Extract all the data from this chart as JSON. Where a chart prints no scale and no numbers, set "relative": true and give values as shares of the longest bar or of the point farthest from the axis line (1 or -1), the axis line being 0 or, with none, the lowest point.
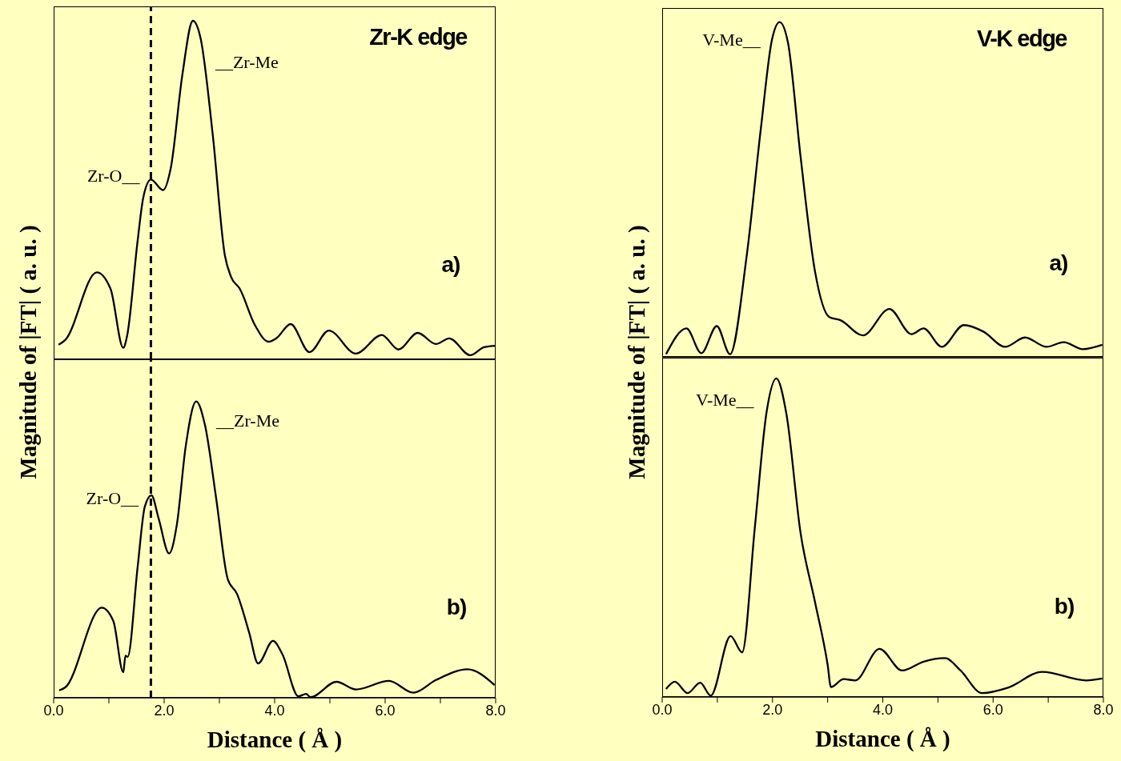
{
  "chart_data": [
    {
      "type": "line",
      "title": "Zr-K edge",
      "ylabel": "Magnitude of |FT| ( a. u. )",
      "relative": true,
      "xlim": [
        0,
        8
      ],
      "tick_labels": false,
      "x": [
        0.09,
        0.21,
        0.78,
        1.03,
        1.26,
        1.33,
        1.52,
        1.62,
        1.76,
        1.98,
        2.12,
        2.33,
        2.52,
        2.66,
        2.88,
        3.1,
        3.21,
        3.37,
        3.64,
        3.89,
        4.03,
        4.29,
        4.63,
        4.98,
        5.47,
        5.94,
        6.24,
        6.59,
        6.92,
        7.16,
        7.54,
        7.79,
        8.0
      ],
      "series": [
        {
          "color": "#000000",
          "values": [
            0.043,
            0.057,
            0.257,
            0.208,
            0.034,
            0.07,
            0.35,
            0.476,
            0.531,
            0.5,
            0.565,
            0.841,
            1.0,
            0.948,
            0.663,
            0.306,
            0.244,
            0.208,
            0.102,
            0.052,
            0.062,
            0.104,
            0.021,
            0.085,
            0.017,
            0.072,
            0.029,
            0.078,
            0.045,
            0.062,
            0.012,
            0.036,
            0.04
          ]
        }
      ],
      "ref_lines": [
        {
          "axis": "x",
          "value": 1.76,
          "line_style": "dashed",
          "color": "#000000"
        }
      ],
      "annotations": [
        {
          "text": "Zr-O__",
          "x": 1.76,
          "y": 0.531
        },
        {
          "text": "__Zr-Me",
          "x": 2.52,
          "y": 1.0
        },
        "a)"
      ]
    },
    {
      "type": "line",
      "title": "V-K edge",
      "ylabel": "Magnitude of |FT| ( a. u. )",
      "relative": true,
      "xlim": [
        0,
        8
      ],
      "tick_labels": false,
      "x": [
        0.07,
        0.44,
        0.71,
        0.99,
        1.23,
        1.53,
        1.79,
        1.99,
        2.13,
        2.28,
        2.51,
        2.77,
        3.03,
        3.24,
        3.64,
        4.12,
        4.52,
        4.74,
        5.07,
        5.47,
        5.83,
        6.22,
        6.58,
        6.97,
        7.28,
        7.63,
        7.98
      ],
      "series": [
        {
          "color": "#000000",
          "values": [
            0.008,
            0.085,
            0.011,
            0.092,
            0.008,
            0.299,
            0.683,
            0.947,
            1.0,
            0.939,
            0.597,
            0.256,
            0.119,
            0.109,
            0.064,
            0.143,
            0.068,
            0.085,
            0.03,
            0.095,
            0.075,
            0.03,
            0.058,
            0.03,
            0.044,
            0.023,
            0.036
          ]
        }
      ],
      "annotations": [
        {
          "text": "V-Me__",
          "x": 2.13,
          "y": 1.0
        },
        "a)"
      ]
    },
    {
      "type": "line",
      "xlabel": "Distance ( Å )",
      "relative": true,
      "xlim": [
        0,
        8
      ],
      "xticks": [
        {
          "value": 0,
          "label": "0.0"
        },
        {
          "value": 1,
          "label": null
        },
        {
          "value": 2,
          "label": "2.0"
        },
        {
          "value": 3,
          "label": null
        },
        {
          "value": 4,
          "label": "4.0"
        },
        {
          "value": 5,
          "label": null
        },
        {
          "value": 6,
          "label": "6.0"
        },
        {
          "value": 7,
          "label": null
        },
        {
          "value": 8,
          "label": "8.0"
        }
      ],
      "tick_labels": "x",
      "x": [
        0.1,
        0.21,
        0.87,
        1.08,
        1.26,
        1.3,
        1.34,
        1.52,
        1.65,
        1.77,
        1.9,
        2.09,
        2.23,
        2.39,
        2.58,
        2.74,
        2.94,
        3.15,
        3.32,
        3.54,
        3.7,
        3.97,
        4.14,
        4.43,
        4.57,
        4.65,
        5.12,
        5.47,
        6.07,
        6.51,
        6.92,
        7.49,
        7.98
      ],
      "series": [
        {
          "color": "#000000",
          "values": [
            0.025,
            0.035,
            0.304,
            0.259,
            0.086,
            0.142,
            0.138,
            0.441,
            0.645,
            0.683,
            0.605,
            0.487,
            0.584,
            0.848,
            1.0,
            0.919,
            0.675,
            0.401,
            0.35,
            0.219,
            0.116,
            0.192,
            0.147,
            0.005,
            0.013,
            0.002,
            0.054,
            0.028,
            0.057,
            0.017,
            0.06,
            0.096,
            0.043
          ]
        }
      ],
      "ref_lines": [
        {
          "axis": "x",
          "value": 1.76,
          "line_style": "dashed",
          "color": "#000000"
        }
      ],
      "annotations": [
        {
          "text": "Zr-O__",
          "x": 1.77,
          "y": 0.683
        },
        {
          "text": "__Zr-Me",
          "x": 2.58,
          "y": 1.0
        },
        "b)"
      ]
    },
    {
      "type": "line",
      "xlabel": "Distance ( Å )",
      "relative": true,
      "xlim": [
        0,
        8
      ],
      "xticks": [
        {
          "value": 0,
          "label": "0.0"
        },
        {
          "value": 1,
          "label": null
        },
        {
          "value": 2,
          "label": "2.0"
        },
        {
          "value": 3,
          "label": null
        },
        {
          "value": 4,
          "label": "4.0"
        },
        {
          "value": 5,
          "label": null
        },
        {
          "value": 6,
          "label": "6.0"
        },
        {
          "value": 7,
          "label": null
        },
        {
          "value": 8,
          "label": "8.0"
        }
      ],
      "tick_labels": "x",
      "x": [
        0.07,
        0.23,
        0.46,
        0.69,
        0.88,
        1.24,
        1.45,
        1.68,
        1.89,
        2.07,
        2.25,
        2.51,
        2.77,
        3.0,
        3.06,
        3.29,
        3.5,
        3.94,
        4.35,
        4.74,
        5.13,
        5.41,
        5.8,
        6.27,
        6.89,
        7.69,
        7.98
      ],
      "series": [
        {
          "color": "#000000",
          "values": [
            0.025,
            0.048,
            0.012,
            0.045,
            0.004,
            0.191,
            0.14,
            0.532,
            0.891,
            1.0,
            0.891,
            0.514,
            0.299,
            0.101,
            0.031,
            0.056,
            0.052,
            0.151,
            0.083,
            0.111,
            0.122,
            0.083,
            0.012,
            0.029,
            0.079,
            0.052,
            0.058
          ]
        }
      ],
      "annotations": [
        {
          "text": "V-Me__",
          "x": 2.07,
          "y": 1.0
        },
        "b)"
      ]
    }
  ]
}
